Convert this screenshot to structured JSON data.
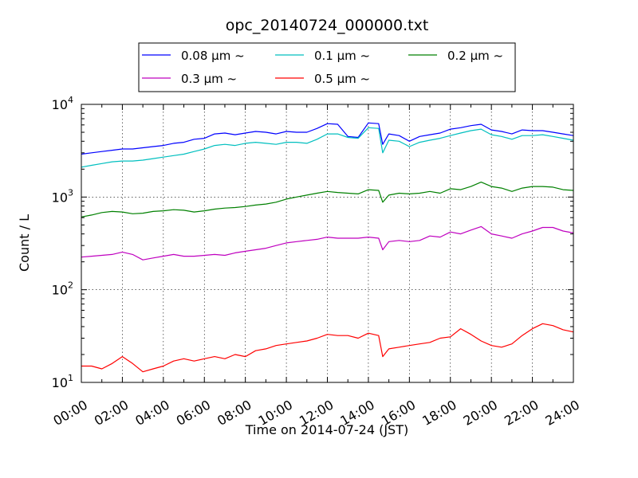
{
  "chart_data": {
    "type": "line",
    "title": "opc_20140724_000000.txt",
    "xlabel": "Time on 2014-07-24 (JST)",
    "ylabel": "Count / L",
    "yscale": "log",
    "ylim": [
      10,
      10000
    ],
    "xlim": [
      "00:00",
      "24:00"
    ],
    "x_ticks": [
      "00:00",
      "02:00",
      "04:00",
      "06:00",
      "08:00",
      "10:00",
      "12:00",
      "14:00",
      "16:00",
      "18:00",
      "20:00",
      "22:00",
      "24:00"
    ],
    "y_ticks": [
      {
        "value": 10,
        "base": "10",
        "exp": "1"
      },
      {
        "value": 100,
        "base": "10",
        "exp": "2"
      },
      {
        "value": 1000,
        "base": "10",
        "exp": "3"
      },
      {
        "value": 10000,
        "base": "10",
        "exp": "4"
      }
    ],
    "grid": true,
    "legend_position": "top-center",
    "x_hours": [
      0,
      0.5,
      1,
      1.5,
      2,
      2.5,
      3,
      3.5,
      4,
      4.5,
      5,
      5.5,
      6,
      6.5,
      7,
      7.5,
      8,
      8.5,
      9,
      9.5,
      10,
      10.5,
      11,
      11.5,
      12,
      12.5,
      13,
      13.5,
      14,
      14.5,
      14.7,
      15,
      15.5,
      16,
      16.5,
      17,
      17.5,
      18,
      18.5,
      19,
      19.5,
      20,
      20.5,
      21,
      21.5,
      22,
      22.5,
      23,
      23.5,
      24
    ],
    "series": [
      {
        "name": "0.08 μm ~",
        "color": "#0000ff",
        "values": [
          2900,
          3000,
          3100,
          3200,
          3300,
          3300,
          3400,
          3500,
          3600,
          3800,
          3900,
          4200,
          4300,
          4800,
          4900,
          4700,
          4900,
          5100,
          5000,
          4800,
          5100,
          5000,
          5000,
          5500,
          6200,
          6100,
          4500,
          4400,
          6300,
          6200,
          3700,
          4800,
          4600,
          4000,
          4500,
          4700,
          4900,
          5400,
          5600,
          5900,
          6100,
          5300,
          5100,
          4800,
          5300,
          5200,
          5200,
          5000,
          4800,
          4600
        ]
      },
      {
        "name": "0.1 μm ~",
        "color": "#00bfbf",
        "values": [
          2100,
          2200,
          2300,
          2400,
          2450,
          2450,
          2500,
          2600,
          2700,
          2800,
          2900,
          3100,
          3300,
          3600,
          3700,
          3600,
          3800,
          3900,
          3800,
          3700,
          3900,
          3900,
          3800,
          4200,
          4800,
          4800,
          4400,
          4300,
          5600,
          5500,
          3000,
          4100,
          4000,
          3500,
          3900,
          4100,
          4300,
          4600,
          4900,
          5200,
          5400,
          4700,
          4500,
          4200,
          4600,
          4600,
          4700,
          4500,
          4300,
          4100
        ]
      },
      {
        "name": "0.2 μm ~",
        "color": "#008000",
        "values": [
          610,
          640,
          680,
          700,
          690,
          660,
          670,
          700,
          710,
          730,
          720,
          690,
          710,
          740,
          760,
          770,
          790,
          820,
          840,
          880,
          950,
          1000,
          1050,
          1100,
          1150,
          1120,
          1100,
          1080,
          1200,
          1180,
          880,
          1050,
          1100,
          1080,
          1100,
          1150,
          1100,
          1230,
          1200,
          1300,
          1450,
          1300,
          1250,
          1150,
          1250,
          1300,
          1300,
          1280,
          1200,
          1180
        ]
      },
      {
        "name": "0.3 μm ~",
        "color": "#bf00bf",
        "values": [
          225,
          230,
          235,
          240,
          255,
          240,
          210,
          220,
          230,
          240,
          230,
          230,
          235,
          240,
          235,
          250,
          260,
          270,
          280,
          300,
          320,
          330,
          340,
          350,
          370,
          360,
          360,
          360,
          370,
          360,
          270,
          330,
          340,
          330,
          340,
          380,
          370,
          420,
          400,
          440,
          480,
          400,
          380,
          360,
          400,
          430,
          470,
          470,
          430,
          410
        ]
      },
      {
        "name": "0.5 μm ~",
        "color": "#ff0000",
        "values": [
          15,
          15,
          14,
          16,
          19,
          16,
          13,
          14,
          15,
          17,
          18,
          17,
          18,
          19,
          18,
          20,
          19,
          22,
          23,
          25,
          26,
          27,
          28,
          30,
          33,
          32,
          32,
          30,
          34,
          32,
          19,
          23,
          24,
          25,
          26,
          27,
          30,
          31,
          38,
          33,
          28,
          25,
          24,
          26,
          32,
          38,
          43,
          41,
          37,
          35
        ]
      }
    ]
  }
}
